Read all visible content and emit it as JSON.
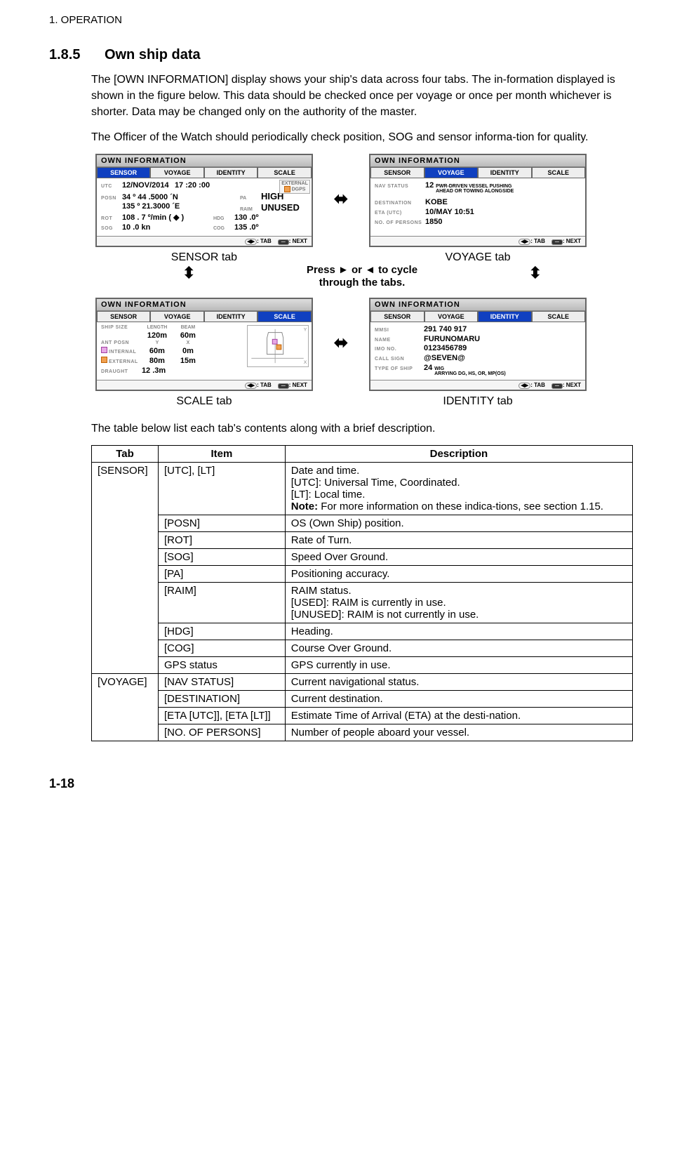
{
  "chapter_header": "1.  OPERATION",
  "section_num": "1.8.5",
  "section_title": "Own ship data",
  "para1": "The [OWN INFORMATION] display shows your ship's data across four tabs. The in-formation displayed is shown in the figure below. This data should be checked once per voyage or once per month whichever is shorter. Data may be changed only on the authority of the master.",
  "para2": "The Officer of the Watch should periodically check position, SOG and sensor informa-tion for quality.",
  "panel_title": "OWN INFORMATION",
  "tabs_list": [
    "SENSOR",
    "VOYAGE",
    "IDENTITY",
    "SCALE"
  ],
  "cycle_hint_1": "Press ► or ◄ to cycle",
  "cycle_hint_2": "through the tabs.",
  "footer_tab": ": TAB",
  "footer_next": ": NEXT",
  "sensor": {
    "caption": "SENSOR tab",
    "utc_label": "UTC",
    "utc_date": "12/NOV/2014",
    "utc_time": "17 :20 :00",
    "posn_label": "POSN",
    "posn_lat": "34 º 44 .5000 ´N",
    "posn_lon": "135 º 21.3000 ´E",
    "rot_label": "ROT",
    "rot": "108 . 7 º/min ( ◆ )",
    "sog_label": "SOG",
    "sog": "10 .0 kn",
    "pa_label": "PA",
    "pa": "HIGH",
    "raim_label": "RAIM",
    "raim": "UNUSED",
    "hdg_label": "HDG",
    "hdg": "130 .0º",
    "cog_label": "COG",
    "cog": "135 .0º",
    "ext1": "EXTERNAL",
    "ext2": "DGPS"
  },
  "voyage": {
    "caption": "VOYAGE tab",
    "nav_status_label": "NAV STATUS",
    "nav_status_num": "12",
    "nav_status_txt1": "PWR-DRIVEN VESSEL PUSHING",
    "nav_status_txt2": "AHEAD OR TOWING ALONGSIDE",
    "dest_label": "DESTINATION",
    "dest": "KOBE",
    "eta_label": "ETA (UTC)",
    "eta": "10/MAY 10:51",
    "persons_label": "NO. OF PERSONS",
    "persons": "1850"
  },
  "identity": {
    "caption": "IDENTITY tab",
    "mmsi_label": "MMSI",
    "mmsi": "291 740 917",
    "name_label": "NAME",
    "name": "FURUNOMARU",
    "imo_label": "IMO NO.",
    "imo": "0123456789",
    "cs_label": "CALL SIGN",
    "cs": "@SEVEN@",
    "type_label": "TYPE OF SHIP",
    "type_num": "24",
    "type_txt1": "WIG",
    "type_txt2": "ARRYING DG, HS, OR, MP(OS)"
  },
  "scale": {
    "caption": "SCALE tab",
    "size_label": "SHIP SIZE",
    "len_label": "LENGTH",
    "beam_label": "BEAM",
    "len": "120m",
    "beam": "60m",
    "ant_label": "ANT  POSN",
    "y_label": "Y",
    "x_label": "X",
    "int_label": "INTERNAL",
    "int_y": "60m",
    "int_x": "0m",
    "ext_label": "EXTERNAL",
    "ext_y": "80m",
    "ext_x": "15m",
    "draught_label": "DRAUGHT",
    "draught": "12 .3m"
  },
  "table_intro": "The table below list each tab's contents along with a brief description.",
  "table": {
    "headers": [
      "Tab",
      "Item",
      "Description"
    ],
    "rows": [
      {
        "tab": "[SENSOR]",
        "item": "[UTC], [LT]",
        "desc": "Date and time.\n[UTC]: Universal Time, Coordinated.\n[LT]: Local time.\nNote: For more information on these indica-tions, see section 1.15.",
        "note_bold": "Note:"
      },
      {
        "tab": "",
        "item": "[POSN]",
        "desc": "OS (Own Ship) position."
      },
      {
        "tab": "",
        "item": "[ROT]",
        "desc": "Rate of Turn."
      },
      {
        "tab": "",
        "item": "[SOG]",
        "desc": "Speed Over Ground."
      },
      {
        "tab": "",
        "item": "[PA]",
        "desc": "Positioning accuracy."
      },
      {
        "tab": "",
        "item": "[RAIM]",
        "desc": "RAIM status.\n[USED]: RAIM is currently in use.\n[UNUSED]: RAIM is not currently in use."
      },
      {
        "tab": "",
        "item": "[HDG]",
        "desc": "Heading."
      },
      {
        "tab": "",
        "item": "[COG]",
        "desc": "Course Over Ground."
      },
      {
        "tab": "",
        "item": "GPS status",
        "desc": "GPS currently in use."
      },
      {
        "tab": "[VOYAGE]",
        "item": "[NAV STATUS]",
        "desc": "Current navigational status."
      },
      {
        "tab": "",
        "item": "[DESTINATION]",
        "desc": "Current destination."
      },
      {
        "tab": "",
        "item": "[ETA [UTC]], [ETA [LT]]",
        "desc": "Estimate Time of Arrival (ETA) at the desti-nation."
      },
      {
        "tab": "",
        "item": "[NO. OF PERSONS]",
        "desc": "Number of people aboard your vessel."
      }
    ]
  },
  "page_num": "1-18"
}
